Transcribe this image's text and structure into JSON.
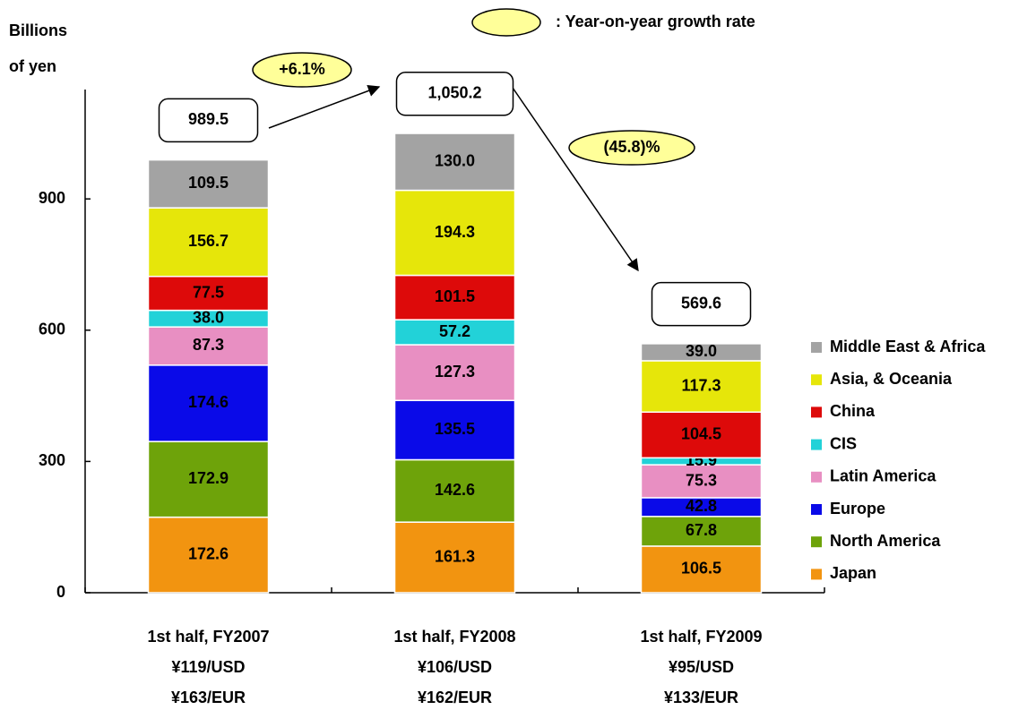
{
  "chart_data": {
    "type": "stacked_bar",
    "y_label": [
      "Billions",
      "of yen"
    ],
    "growth_legend": ": Year-on-year growth rate",
    "categories": [
      "1st half, FY2007",
      "1st half, FY2008",
      "1st half, FY2009"
    ],
    "category_notes": [
      [
        "¥119/USD",
        "¥163/EUR"
      ],
      [
        "¥106/USD",
        "¥162/EUR"
      ],
      [
        "¥95/USD",
        "¥133/EUR"
      ]
    ],
    "totals": [
      989.5,
      1050.2,
      569.6
    ],
    "total_labels": [
      "989.5",
      "1,050.2",
      "569.6"
    ],
    "growth": [
      {
        "value": 6.1,
        "label": "+6.1%"
      },
      {
        "value": -45.8,
        "label": "(45.8)%"
      }
    ],
    "ylim": [
      0,
      1150
    ],
    "yticks": [
      0,
      300,
      600,
      900
    ],
    "series": [
      {
        "name": "Japan",
        "color": "#f29410",
        "text_color": "#000000",
        "values": [
          172.6,
          161.3,
          106.5
        ],
        "value_labels": [
          "172.6",
          "161.3",
          "106.5"
        ]
      },
      {
        "name": "North America",
        "color": "#6ea30a",
        "text_color": "#000000",
        "values": [
          172.9,
          142.6,
          67.8
        ],
        "value_labels": [
          "172.9",
          "142.6",
          "67.8"
        ]
      },
      {
        "name": "Europe",
        "color": "#0a0ae8",
        "text_color": "#ffffff",
        "values": [
          174.6,
          135.5,
          42.8
        ],
        "value_labels": [
          "174.6",
          "135.5",
          "42.8"
        ]
      },
      {
        "name": "Latin America",
        "color": "#e88fc2",
        "text_color": "#000000",
        "values": [
          87.3,
          127.3,
          75.3
        ],
        "value_labels": [
          "87.3",
          "127.3",
          "75.3"
        ]
      },
      {
        "name": "CIS",
        "color": "#22d2d8",
        "text_color": "#000033",
        "values": [
          38.0,
          57.2,
          15.9
        ],
        "value_labels": [
          "38.0",
          "57.2",
          "15.9"
        ]
      },
      {
        "name": "China",
        "color": "#dd0a0a",
        "text_color": "#ffffff",
        "values": [
          77.5,
          101.5,
          104.5
        ],
        "value_labels": [
          "77.5",
          "101.5",
          "104.5"
        ]
      },
      {
        "name": "Asia, & Oceania",
        "color": "#e6e60a",
        "text_color": "#000000",
        "values": [
          156.7,
          194.3,
          117.3
        ],
        "value_labels": [
          "156.7",
          "194.3",
          "117.3"
        ]
      },
      {
        "name": "Middle East & Africa",
        "color": "#a3a3a3",
        "text_color": "#000000",
        "values": [
          109.5,
          130.0,
          39.0
        ],
        "value_labels": [
          "109.5",
          "130.0",
          "39.0"
        ]
      }
    ]
  }
}
